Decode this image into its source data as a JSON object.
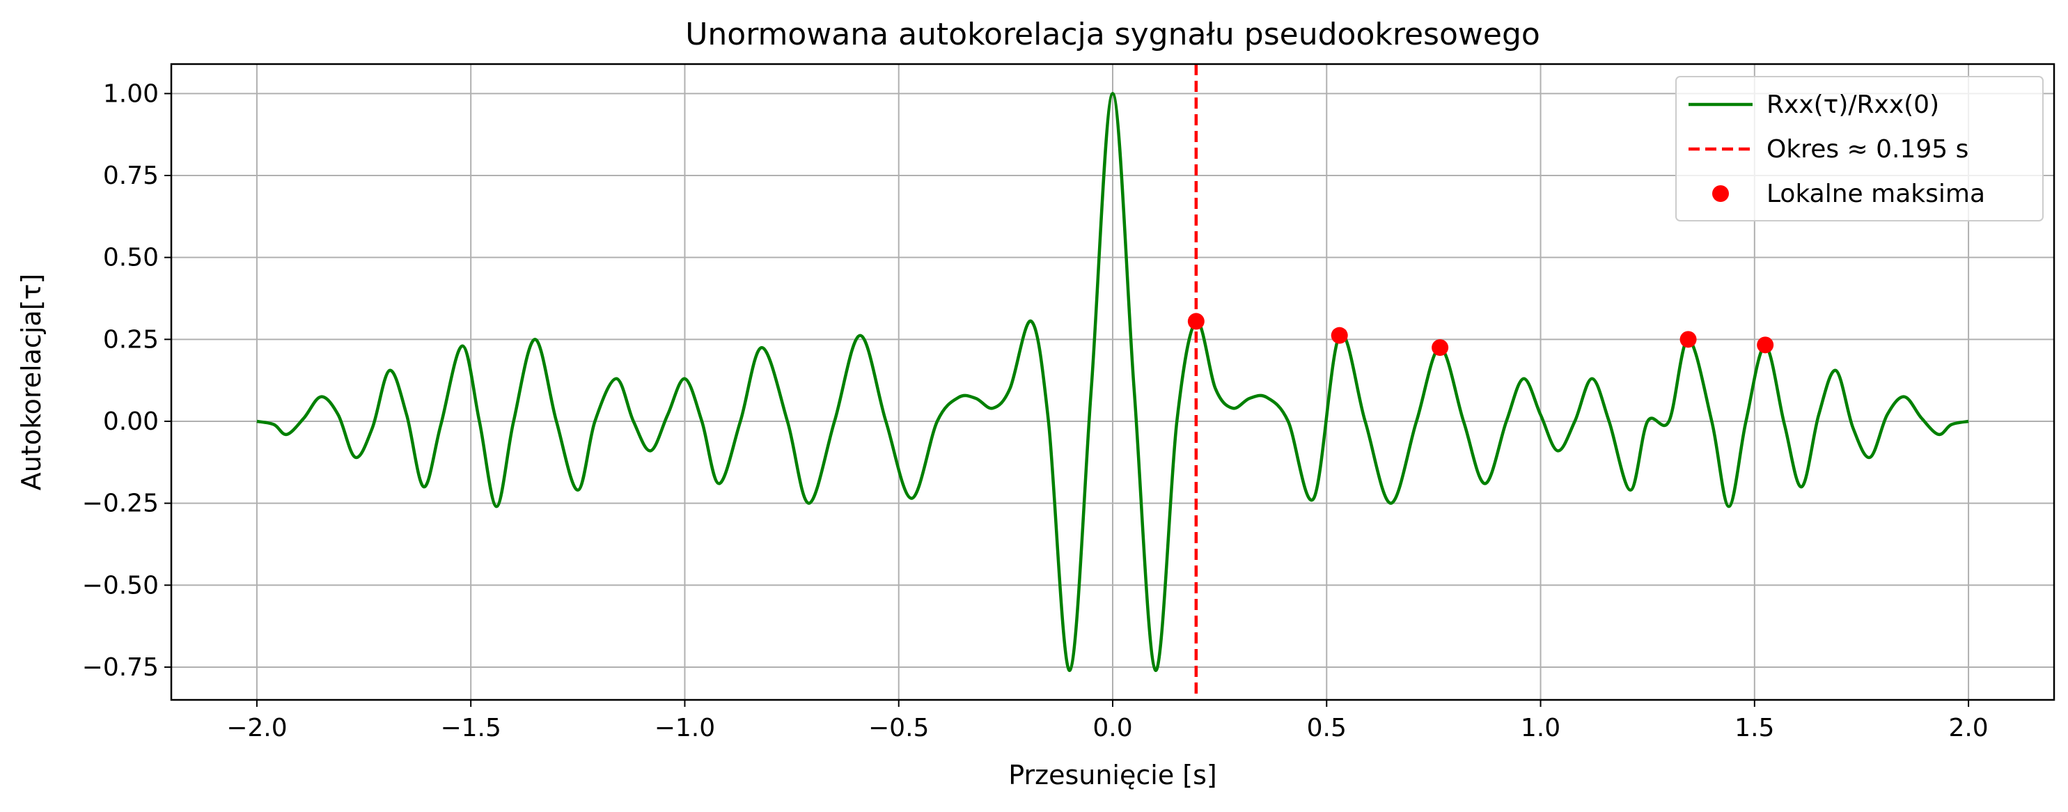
{
  "chart_data": {
    "type": "line",
    "title": "Unormowana autokorelacja sygnału pseudookresowego",
    "xlabel": "Przesunięcie [s]",
    "ylabel": "Autokorelacja[τ]",
    "xlim": [
      -2.2,
      2.2
    ],
    "ylim": [
      -0.85,
      1.09
    ],
    "xticks": [
      -2.0,
      -1.5,
      -1.0,
      -0.5,
      0.0,
      0.5,
      1.0,
      1.5,
      2.0
    ],
    "xtick_labels": [
      "−2.0",
      "−1.5",
      "−1.0",
      "−0.5",
      "0.0",
      "0.5",
      "1.0",
      "1.5",
      "2.0"
    ],
    "yticks": [
      1.0,
      0.75,
      0.5,
      0.25,
      0.0,
      -0.25,
      -0.5,
      -0.75
    ],
    "ytick_labels": [
      "1.00",
      "0.75",
      "0.50",
      "0.25",
      "0.00",
      "−0.25",
      "−0.50",
      "−0.75"
    ],
    "grid": true,
    "legend_position": "top-right",
    "series": [
      {
        "name": "Rxx(τ)/Rxx(0)",
        "kind": "line",
        "color": "#008000",
        "x": [
          -2.0,
          -1.96,
          -1.93,
          -1.89,
          -1.85,
          -1.81,
          -1.77,
          -1.73,
          -1.69,
          -1.65,
          -1.61,
          -1.57,
          -1.52,
          -1.48,
          -1.44,
          -1.4,
          -1.35,
          -1.3,
          -1.25,
          -1.21,
          -1.16,
          -1.12,
          -1.08,
          -1.04,
          -1.0,
          -0.96,
          -0.92,
          -0.87,
          -0.82,
          -0.76,
          -0.71,
          -0.65,
          -0.59,
          -0.53,
          -0.47,
          -0.41,
          -0.36,
          -0.32,
          -0.28,
          -0.24,
          -0.19,
          -0.15,
          -0.1,
          -0.05,
          0.0,
          0.05,
          0.1,
          0.15,
          0.195,
          0.24,
          0.28,
          0.32,
          0.36,
          0.41,
          0.47,
          0.53,
          0.59,
          0.65,
          0.71,
          0.765,
          0.82,
          0.87,
          0.92,
          0.96,
          1.0,
          1.04,
          1.08,
          1.12,
          1.16,
          1.21,
          1.25,
          1.3,
          1.345,
          1.4,
          1.44,
          1.48,
          1.525,
          1.57,
          1.61,
          1.65,
          1.69,
          1.73,
          1.77,
          1.81,
          1.85,
          1.89,
          1.93,
          1.96,
          2.0
        ],
        "y": [
          0.0,
          -0.01,
          -0.04,
          0.01,
          0.075,
          0.02,
          -0.11,
          -0.02,
          0.155,
          0.02,
          -0.2,
          -0.01,
          0.23,
          0.0,
          -0.26,
          0.0,
          0.25,
          0.0,
          -0.21,
          0.0,
          0.13,
          0.0,
          -0.09,
          0.02,
          0.13,
          0.0,
          -0.19,
          0.0,
          0.225,
          0.0,
          -0.25,
          0.0,
          0.262,
          0.0,
          -0.235,
          0.0,
          0.073,
          0.07,
          0.04,
          0.1,
          0.305,
          0.0,
          -0.76,
          0.1,
          1.0,
          0.1,
          -0.76,
          0.0,
          0.305,
          0.1,
          0.04,
          0.07,
          0.073,
          0.0,
          -0.235,
          0.262,
          0.0,
          -0.25,
          0.0,
          0.225,
          0.0,
          -0.19,
          0.0,
          0.13,
          0.02,
          -0.09,
          0.0,
          0.13,
          0.0,
          -0.21,
          0.0,
          0.0,
          0.25,
          0.0,
          -0.26,
          0.0,
          0.23,
          -0.01,
          -0.2,
          0.02,
          0.155,
          -0.02,
          -0.11,
          0.02,
          0.075,
          0.01,
          -0.04,
          -0.01,
          0.0
        ]
      },
      {
        "name": "Okres ≈ 0.195 s",
        "kind": "vline",
        "color": "#ff0000",
        "x": 0.195
      },
      {
        "name": "Lokalne maksima",
        "kind": "scatter",
        "color": "#ff0000",
        "x": [
          0.195,
          0.53,
          0.765,
          1.345,
          1.525
        ],
        "y": [
          0.305,
          0.262,
          0.225,
          0.25,
          0.233
        ]
      }
    ]
  }
}
